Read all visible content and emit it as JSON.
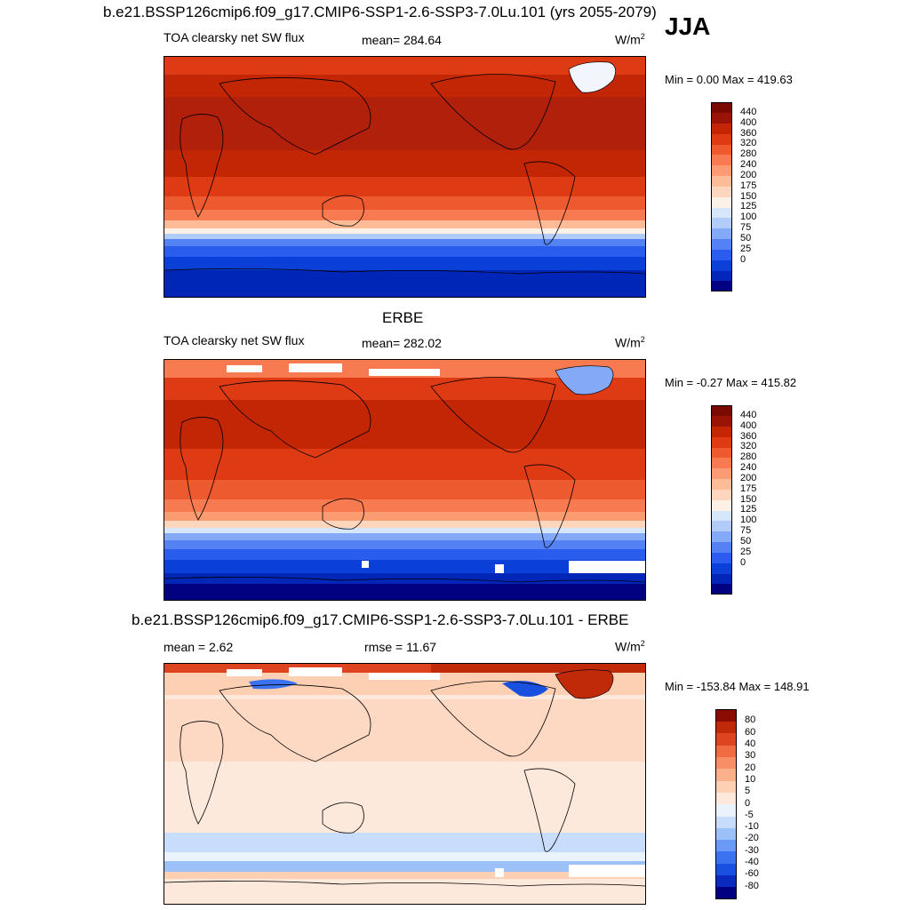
{
  "header": {
    "title": "b.e21.BSSP126cmip6.f09_g17.CMIP6-SSP1-2.6-SSP3-7.0Lu.101 (yrs 2055-2079)",
    "season": "JJA"
  },
  "panels": [
    {
      "id": "model",
      "title": "",
      "left_label": "TOA clearsky net SW flux",
      "center_label": "mean= 284.64",
      "units": "W/m",
      "units_sup": "2",
      "minmax": "Min =   0.00 Max = 419.63",
      "colorbar": "abs"
    },
    {
      "id": "obs",
      "title": "ERBE",
      "left_label": "TOA clearsky net SW flux",
      "center_label": "mean= 282.02",
      "units": "W/m",
      "units_sup": "2",
      "minmax": "Min =  -0.27 Max = 415.82",
      "colorbar": "abs"
    },
    {
      "id": "diff",
      "title": "b.e21.BSSP126cmip6.f09_g17.CMIP6-SSP1-2.6-SSP3-7.0Lu.101 - ERBE",
      "left_label": "mean =   2.62",
      "center_label": "rmse =  11.67",
      "units": "W/m",
      "units_sup": "2",
      "minmax": "Min = -153.84 Max = 148.91",
      "colorbar": "diff"
    }
  ],
  "colorbars": {
    "abs": {
      "colors": [
        "#000080",
        "#0026b8",
        "#0a40d8",
        "#2a5cee",
        "#5482f4",
        "#84aaf7",
        "#b2ccfa",
        "#d6e6fb",
        "#fdf0e6",
        "#fdd6bd",
        "#fdbb98",
        "#fb9b72",
        "#f77a50",
        "#ee5a30",
        "#de3a14",
        "#c22605",
        "#9a1406",
        "#780a00"
      ],
      "ticks": [
        "440",
        "400",
        "360",
        "320",
        "280",
        "240",
        "200",
        "175",
        "150",
        "125",
        "100",
        "75",
        "50",
        "25",
        "0"
      ]
    },
    "diff": {
      "colors": [
        "#000080",
        "#0a2ac0",
        "#1a50e0",
        "#3a72f0",
        "#6a9af5",
        "#9cc0f8",
        "#c8dcfb",
        "#eaf2fc",
        "#fde8dc",
        "#fdcfb3",
        "#fbb08c",
        "#f78e66",
        "#f06a42",
        "#de4420",
        "#c02a08",
        "#8a0c02"
      ],
      "ticks": [
        "80",
        "60",
        "40",
        "30",
        "20",
        "10",
        "5",
        "0",
        "-5",
        "-10",
        "-20",
        "-30",
        "-40",
        "-60",
        "-80"
      ]
    }
  }
}
